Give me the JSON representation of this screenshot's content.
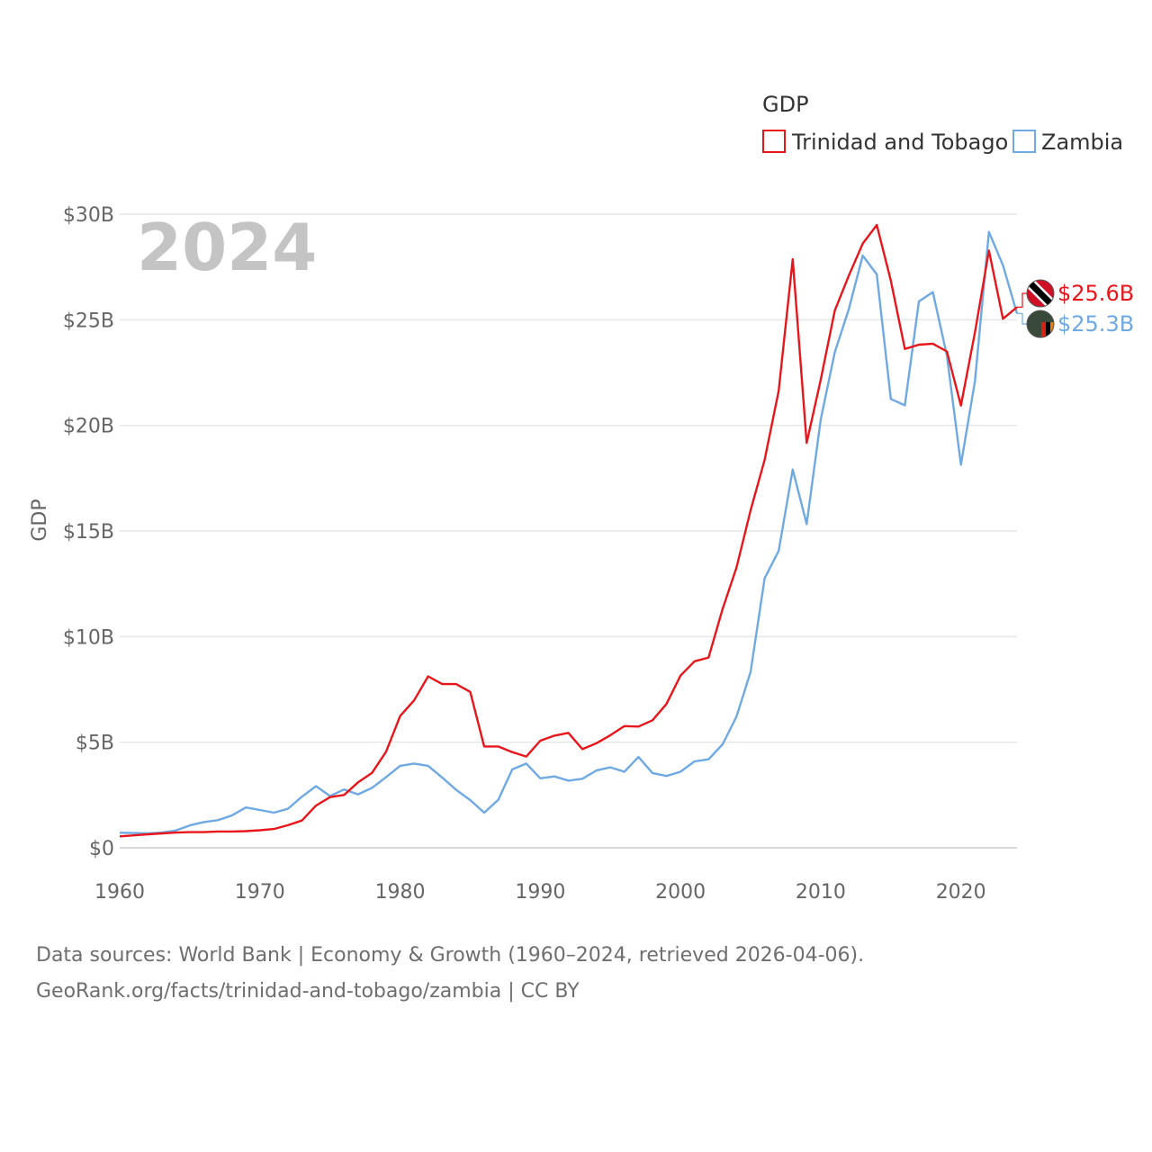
{
  "chart_data": {
    "type": "line",
    "title": "",
    "year_label": "2024",
    "ylabel": "GDP",
    "xlabel": "",
    "legend": {
      "title": "GDP",
      "position": "top-right"
    },
    "xlim": [
      1960,
      2024
    ],
    "ylim": [
      0,
      30
    ],
    "x_ticks": [
      {
        "value": 1960,
        "label": "1960"
      },
      {
        "value": 1970,
        "label": "1970"
      },
      {
        "value": 1980,
        "label": "1980"
      },
      {
        "value": 1990,
        "label": "1990"
      },
      {
        "value": 2000,
        "label": "2000"
      },
      {
        "value": 2010,
        "label": "2010"
      },
      {
        "value": 2020,
        "label": "2020"
      }
    ],
    "y_ticks": [
      {
        "value": 0,
        "label": "$0"
      },
      {
        "value": 5,
        "label": "$5B"
      },
      {
        "value": 10,
        "label": "$10B"
      },
      {
        "value": 15,
        "label": "$15B"
      },
      {
        "value": 20,
        "label": "$20B"
      },
      {
        "value": 25,
        "label": "$25B"
      },
      {
        "value": 30,
        "label": "$30B"
      }
    ],
    "unit": "billion USD",
    "x": [
      1960,
      1961,
      1962,
      1963,
      1964,
      1965,
      1966,
      1967,
      1968,
      1969,
      1970,
      1971,
      1972,
      1973,
      1974,
      1975,
      1976,
      1977,
      1978,
      1979,
      1980,
      1981,
      1982,
      1983,
      1984,
      1985,
      1986,
      1987,
      1988,
      1989,
      1990,
      1991,
      1992,
      1993,
      1994,
      1995,
      1996,
      1997,
      1998,
      1999,
      2000,
      2001,
      2002,
      2003,
      2004,
      2005,
      2006,
      2007,
      2008,
      2009,
      2010,
      2011,
      2012,
      2013,
      2014,
      2015,
      2016,
      2017,
      2018,
      2019,
      2020,
      2021,
      2022,
      2023,
      2024
    ],
    "series": [
      {
        "name": "Trinidad and Tobago",
        "color": "#e8161b",
        "end_label": "$25.6B",
        "flag_colors": [
          "#ce1126",
          "#ffffff",
          "#000000"
        ],
        "values": [
          0.54,
          0.59,
          0.64,
          0.68,
          0.72,
          0.74,
          0.74,
          0.77,
          0.77,
          0.79,
          0.83,
          0.89,
          1.07,
          1.29,
          2.0,
          2.4,
          2.5,
          3.1,
          3.55,
          4.55,
          6.24,
          6.98,
          8.12,
          7.75,
          7.75,
          7.38,
          4.8,
          4.8,
          4.53,
          4.32,
          5.07,
          5.31,
          5.44,
          4.67,
          4.95,
          5.33,
          5.76,
          5.74,
          6.04,
          6.81,
          8.15,
          8.83,
          9.01,
          11.31,
          13.28,
          15.98,
          18.37,
          21.64,
          27.87,
          19.17,
          22.16,
          25.43,
          27.09,
          28.61,
          29.49,
          26.86,
          23.62,
          23.82,
          23.87,
          23.5,
          20.94,
          24.41,
          28.28,
          25.05,
          25.6
        ]
      },
      {
        "name": "Zambia",
        "color": "#6fa9e3",
        "end_label": "$25.3B",
        "flag_colors": [
          "#198a00",
          "#de2010",
          "#000000",
          "#ef7d00"
        ],
        "values": [
          0.71,
          0.7,
          0.68,
          0.72,
          0.82,
          1.06,
          1.22,
          1.31,
          1.53,
          1.91,
          1.79,
          1.66,
          1.85,
          2.42,
          2.92,
          2.45,
          2.76,
          2.53,
          2.84,
          3.35,
          3.88,
          3.99,
          3.88,
          3.33,
          2.74,
          2.26,
          1.66,
          2.27,
          3.71,
          3.99,
          3.29,
          3.38,
          3.18,
          3.27,
          3.66,
          3.81,
          3.6,
          4.3,
          3.54,
          3.4,
          3.6,
          4.09,
          4.19,
          4.9,
          6.22,
          8.33,
          12.76,
          14.06,
          17.91,
          15.33,
          20.27,
          23.46,
          25.5,
          28.04,
          27.15,
          21.25,
          20.95,
          25.87,
          26.31,
          23.31,
          18.14,
          22.1,
          29.16,
          27.58,
          25.3
        ]
      }
    ]
  },
  "footer": {
    "line1": "Data sources: World Bank | Economy & Growth (1960–2024, retrieved 2026-04-06).",
    "line2": "GeoRank.org/facts/trinidad-and-tobago/zambia | CC BY"
  }
}
